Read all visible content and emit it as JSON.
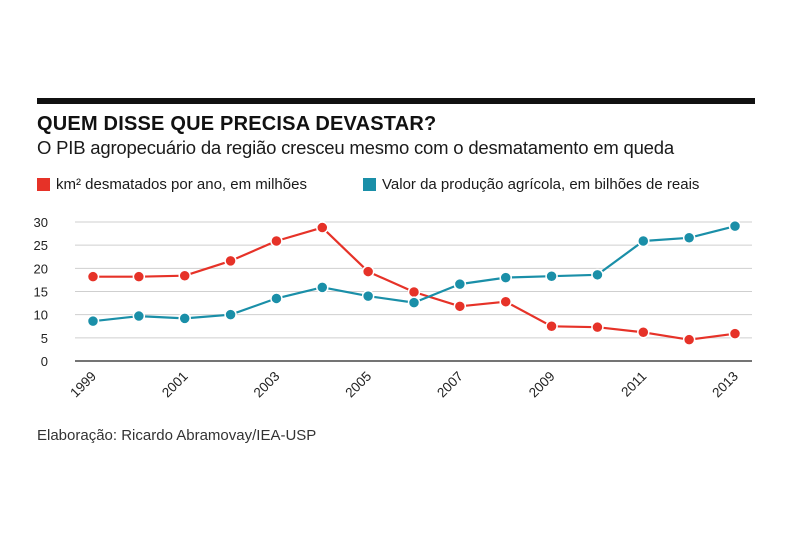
{
  "header": {
    "title": "QUEM DISSE QUE PRECISA DEVASTAR?",
    "subtitle": "O PIB agropecuário da região cresceu mesmo com o desmatamento em queda"
  },
  "legend": {
    "red_label": "km² desmatados por ano, em milhões",
    "blue_label": "Valor da produção agrícola, em bilhões de reais"
  },
  "credit": "Elaboração: Ricardo Abramovay/IEA-USP",
  "colors": {
    "red": "#e63228",
    "blue": "#1a8fa8",
    "grid": "#cfcfcf",
    "axis": "#222222"
  },
  "chart_data": {
    "type": "line",
    "x": [
      1999,
      2000,
      2001,
      2002,
      2003,
      2004,
      2005,
      2006,
      2007,
      2008,
      2009,
      2010,
      2011,
      2012,
      2013
    ],
    "x_tick_labels": [
      "1999",
      "2001",
      "2003",
      "2005",
      "2007",
      "2009",
      "2011",
      "2013"
    ],
    "y_ticks": [
      0,
      5,
      10,
      15,
      20,
      25,
      30
    ],
    "ylim": [
      0,
      30
    ],
    "grid": true,
    "legend_position": "top",
    "series": [
      {
        "name": "km² desmatados por ano, em milhões",
        "color": "red",
        "values": [
          18.2,
          18.2,
          18.4,
          21.6,
          25.9,
          28.8,
          19.3,
          14.9,
          11.8,
          12.8,
          7.5,
          7.3,
          6.2,
          4.6,
          5.9
        ]
      },
      {
        "name": "Valor da produção agrícola, em bilhões de reais",
        "color": "blue",
        "values": [
          8.6,
          9.7,
          9.2,
          10.0,
          13.5,
          15.9,
          14.0,
          12.6,
          16.6,
          18.0,
          18.3,
          18.6,
          25.9,
          26.6,
          29.1
        ]
      }
    ]
  }
}
